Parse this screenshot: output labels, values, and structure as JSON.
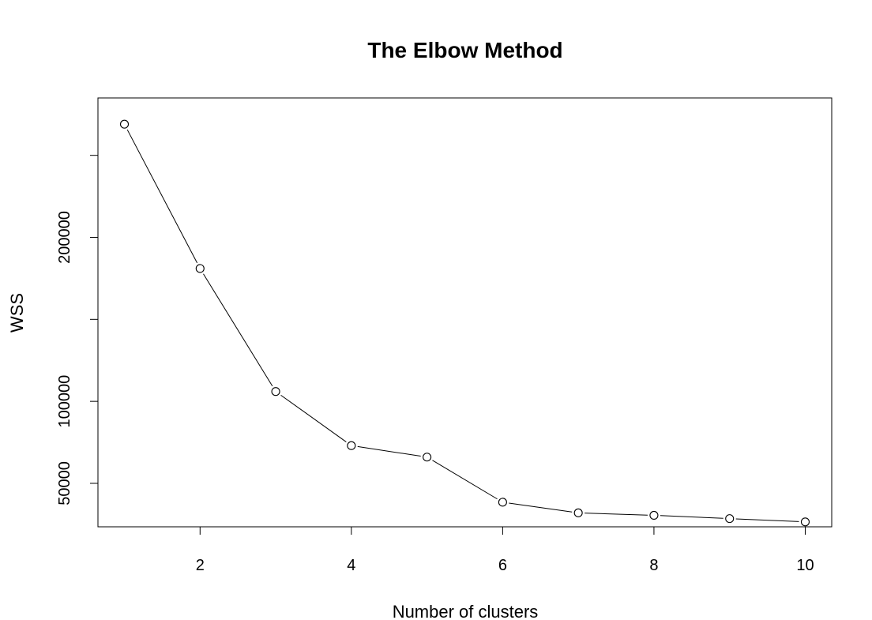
{
  "chart_data": {
    "type": "line",
    "title": "The Elbow Method",
    "xlabel": "Number of clusters",
    "ylabel": "WSS",
    "x": [
      1,
      2,
      3,
      4,
      5,
      6,
      7,
      8,
      9,
      10
    ],
    "series": [
      {
        "values": [
          269000,
          181000,
          106000,
          73000,
          66000,
          38500,
          32000,
          30500,
          28500,
          26500
        ],
        "line_color": "#000000",
        "marker": "open-circle"
      }
    ],
    "xlim": [
      0.65,
      10.35
    ],
    "ylim": [
      23500,
      285000
    ],
    "xticks": [
      2,
      4,
      6,
      8,
      10
    ],
    "yticks": [
      50000,
      100000,
      150000,
      200000,
      250000
    ],
    "xtick_labels": [
      "2",
      "4",
      "6",
      "8",
      "10"
    ],
    "ytick_labels": [
      "50000",
      "100000",
      "",
      "200000",
      ""
    ],
    "grid": false,
    "legend": "none"
  }
}
